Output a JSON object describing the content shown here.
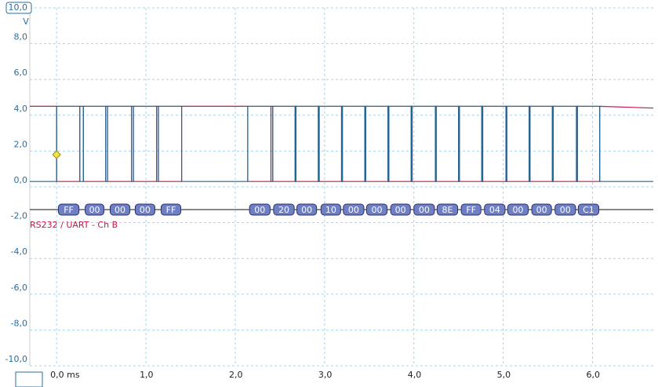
{
  "chart_data": {
    "type": "line",
    "y_unit": "V",
    "xlim": [
      -0.3,
      6.68
    ],
    "ylim": [
      -10,
      10
    ],
    "xticks": [
      {
        "value": 0,
        "label": "0,0 ms"
      },
      {
        "value": 1,
        "label": "1,0"
      },
      {
        "value": 2,
        "label": "2,0"
      },
      {
        "value": 3,
        "label": "3,0"
      },
      {
        "value": 4,
        "label": "4,0"
      },
      {
        "value": 5,
        "label": "5,0"
      },
      {
        "value": 6,
        "label": "6,0"
      }
    ],
    "yticks": [
      {
        "value": 10,
        "label": "10,0"
      },
      {
        "value": 8,
        "label": "8,0"
      },
      {
        "value": 6,
        "label": "6,0"
      },
      {
        "value": 4,
        "label": "4,0"
      },
      {
        "value": 2,
        "label": "2,0"
      },
      {
        "value": 0,
        "label": "0,0"
      },
      {
        "value": -2,
        "label": "-2,0"
      },
      {
        "value": -4,
        "label": "-4,0"
      },
      {
        "value": -6,
        "label": "-6,0"
      },
      {
        "value": -8,
        "label": "-8,0"
      },
      {
        "value": -10,
        "label": "-10,0"
      }
    ],
    "grid": true,
    "x": [
      -0.3,
      0.0,
      0.0,
      0.26,
      0.26,
      0.3,
      0.3,
      0.55,
      0.55,
      0.57,
      0.57,
      0.84,
      0.84,
      0.86,
      0.86,
      1.12,
      1.12,
      1.14,
      1.14,
      1.4,
      1.4,
      2.14,
      2.14,
      2.4,
      2.4,
      2.42,
      2.42,
      2.67,
      2.67,
      2.68,
      2.68,
      2.93,
      2.93,
      2.94,
      2.94,
      3.19,
      3.19,
      3.2,
      3.2,
      3.45,
      3.45,
      3.46,
      3.46,
      3.71,
      3.71,
      3.72,
      3.72,
      3.97,
      3.97,
      3.98,
      3.98,
      4.24,
      4.24,
      4.25,
      4.25,
      4.5,
      4.5,
      4.51,
      4.51,
      4.76,
      4.76,
      4.77,
      4.77,
      5.03,
      5.03,
      5.04,
      5.04,
      5.29,
      5.29,
      5.3,
      5.3,
      5.55,
      5.55,
      5.56,
      5.56,
      5.82,
      5.82,
      5.83,
      5.83,
      6.08,
      6.08,
      6.68
    ],
    "series": [
      {
        "color": "#c8184a",
        "values": [
          4.5,
          4.5,
          0.3,
          0.3,
          4.5,
          4.5,
          0.3,
          0.3,
          4.5,
          4.5,
          0.3,
          0.3,
          4.5,
          4.5,
          0.3,
          0.3,
          4.5,
          4.5,
          0.3,
          0.3,
          4.5,
          4.5,
          0.3,
          0.3,
          4.5,
          4.5,
          0.3,
          0.3,
          4.5,
          4.5,
          0.3,
          0.3,
          4.5,
          4.5,
          0.3,
          0.3,
          4.5,
          4.5,
          0.3,
          0.3,
          4.5,
          4.5,
          0.3,
          0.3,
          4.5,
          4.5,
          0.3,
          0.3,
          4.5,
          4.5,
          0.3,
          0.3,
          4.5,
          4.5,
          0.3,
          0.3,
          4.5,
          4.5,
          0.3,
          0.3,
          4.5,
          4.5,
          0.3,
          0.3,
          4.5,
          4.5,
          0.3,
          0.3,
          4.5,
          4.5,
          0.3,
          0.3,
          4.5,
          4.5,
          0.3,
          0.3,
          4.5,
          4.5,
          0.3,
          0.3,
          4.5,
          4.4
        ]
      },
      {
        "color": "#1a6a99",
        "values": [
          0.3,
          0.3,
          4.5,
          4.5,
          0.3,
          0.3,
          4.5,
          4.5,
          0.3,
          0.3,
          4.5,
          4.5,
          0.3,
          0.3,
          4.5,
          4.5,
          0.3,
          0.3,
          4.5,
          4.5,
          0.3,
          0.3,
          4.5,
          4.5,
          0.3,
          0.3,
          4.5,
          4.5,
          0.3,
          0.3,
          4.5,
          4.5,
          0.3,
          0.3,
          4.5,
          4.5,
          0.3,
          0.3,
          4.5,
          4.5,
          0.3,
          0.3,
          4.5,
          4.5,
          0.3,
          0.3,
          4.5,
          4.5,
          0.3,
          0.3,
          4.5,
          4.5,
          0.3,
          0.3,
          4.5,
          4.5,
          0.3,
          0.3,
          4.5,
          4.5,
          0.3,
          0.3,
          4.5,
          4.5,
          0.3,
          0.3,
          4.5,
          4.5,
          0.3,
          0.3,
          4.5,
          4.5,
          0.3,
          0.3,
          4.5,
          4.5,
          0.3,
          0.3,
          4.5,
          4.5,
          0.3,
          0.3
        ]
      }
    ],
    "trigger": {
      "x": 0,
      "y": 1.8,
      "color": "#f2e34a"
    },
    "decoder": {
      "label": "RS232 / UART - Ch B",
      "color": "#c8184a",
      "box_color": "#6f7fc4",
      "bytes": [
        {
          "label": "FF",
          "start": 0.02,
          "end": 0.25
        },
        {
          "label": "00",
          "start": 0.32,
          "end": 0.53
        },
        {
          "label": "00",
          "start": 0.6,
          "end": 0.82
        },
        {
          "label": "00",
          "start": 0.88,
          "end": 1.1
        },
        {
          "label": "FF",
          "start": 1.17,
          "end": 1.39
        },
        {
          "label": "00",
          "start": 2.16,
          "end": 2.39
        },
        {
          "label": "20",
          "start": 2.43,
          "end": 2.66
        },
        {
          "label": "00",
          "start": 2.69,
          "end": 2.91
        },
        {
          "label": "10",
          "start": 2.96,
          "end": 3.18
        },
        {
          "label": "00",
          "start": 3.21,
          "end": 3.44
        },
        {
          "label": "00",
          "start": 3.47,
          "end": 3.7
        },
        {
          "label": "00",
          "start": 3.74,
          "end": 3.96
        },
        {
          "label": "00",
          "start": 4.0,
          "end": 4.23
        },
        {
          "label": "8E",
          "start": 4.26,
          "end": 4.49
        },
        {
          "label": "FF",
          "start": 4.53,
          "end": 4.75
        },
        {
          "label": "04",
          "start": 4.79,
          "end": 5.02
        },
        {
          "label": "00",
          "start": 5.05,
          "end": 5.28
        },
        {
          "label": "00",
          "start": 5.32,
          "end": 5.54
        },
        {
          "label": "00",
          "start": 5.58,
          "end": 5.81
        },
        {
          "label": "C1",
          "start": 5.84,
          "end": 6.07
        }
      ]
    }
  }
}
